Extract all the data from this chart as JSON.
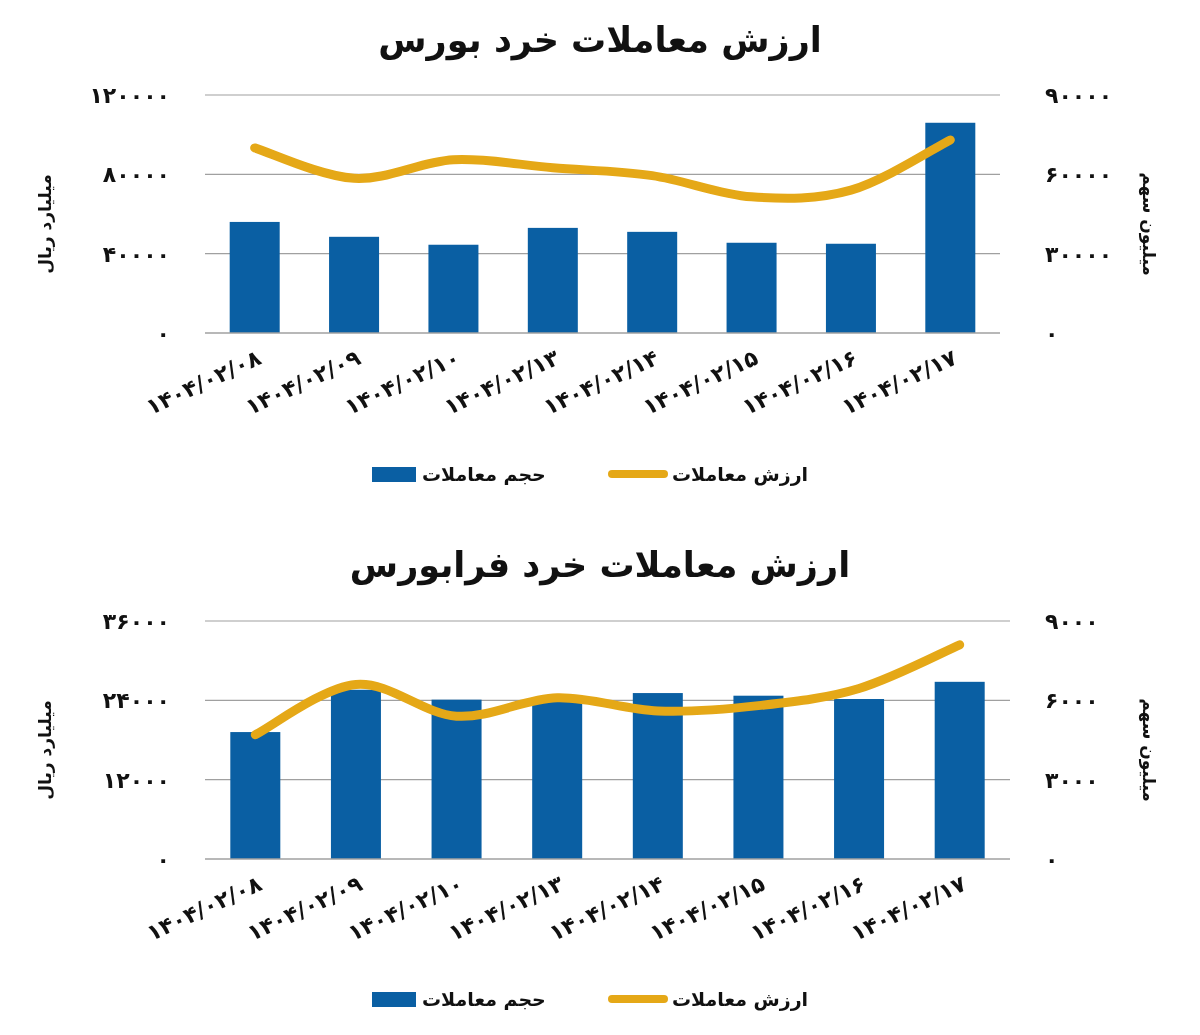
{
  "chart_data": [
    {
      "type": "bar",
      "title": "ارزش معاملات خرد بورس",
      "ylabel": "میلیارد ریال",
      "y2label": "میلیون سهم",
      "categories": [
        "۱۴۰۴/۰۲/۰۸",
        "۱۴۰۴/۰۲/۰۹",
        "۱۴۰۴/۰۲/۱۰",
        "۱۴۰۴/۰۲/۱۳",
        "۱۴۰۴/۰۲/۱۴",
        "۱۴۰۴/۰۲/۱۵",
        "۱۴۰۴/۰۲/۱۶",
        "۱۴۰۴/۰۲/۱۷"
      ],
      "series": [
        {
          "name": "حجم معاملات",
          "color": "#0a5fa3",
          "values": [
            56000,
            48500,
            44500,
            53000,
            51000,
            45500,
            45000,
            106000
          ]
        },
        {
          "name": "ارزش معاملات",
          "type": "line",
          "axis": "y2",
          "color": "#e5a817",
          "values": [
            70000,
            58500,
            65500,
            62500,
            59500,
            51500,
            54000,
            73000
          ]
        }
      ],
      "ylim": [
        0,
        120000
      ],
      "yticks": [
        {
          "value": 0,
          "label": "۰"
        },
        {
          "value": 40000,
          "label": "۴۰۰۰۰"
        },
        {
          "value": 80000,
          "label": "۸۰۰۰۰"
        },
        {
          "value": 120000,
          "label": "۱۲۰۰۰۰"
        }
      ],
      "y2lim": [
        0,
        90000
      ],
      "y2ticks": [
        {
          "value": 0,
          "label": "۰"
        },
        {
          "value": 30000,
          "label": "۳۰۰۰۰"
        },
        {
          "value": 60000,
          "label": "۶۰۰۰۰"
        },
        {
          "value": 90000,
          "label": "۹۰۰۰۰"
        }
      ],
      "grid": "y",
      "legend": "bottom",
      "marker": "none"
    },
    {
      "type": "bar",
      "title": "ارزش معاملات خرد فرابورس",
      "ylabel": "میلیارد ریال",
      "y2label": "میلیون سهم",
      "categories": [
        "۱۴۰۴/۰۲/۰۸",
        "۱۴۰۴/۰۲/۰۹",
        "۱۴۰۴/۰۲/۱۰",
        "۱۴۰۴/۰۲/۱۳",
        "۱۴۰۴/۰۲/۱۴",
        "۱۴۰۴/۰۲/۱۵",
        "۱۴۰۴/۰۲/۱۶",
        "۱۴۰۴/۰۲/۱۷"
      ],
      "series": [
        {
          "name": "حجم معاملات",
          "color": "#0a5fa3",
          "values": [
            19200,
            25600,
            24100,
            23800,
            25100,
            24700,
            24200,
            26800
          ]
        },
        {
          "name": "ارزش معاملات",
          "type": "line",
          "axis": "y2",
          "color": "#e5a817",
          "values": [
            4700,
            6600,
            5400,
            6100,
            5600,
            5800,
            6450,
            8100
          ]
        }
      ],
      "ylim": [
        0,
        36000
      ],
      "yticks": [
        {
          "value": 0,
          "label": "۰"
        },
        {
          "value": 12000,
          "label": "۱۲۰۰۰"
        },
        {
          "value": 24000,
          "label": "۲۴۰۰۰"
        },
        {
          "value": 36000,
          "label": "۳۶۰۰۰"
        }
      ],
      "y2lim": [
        0,
        9000
      ],
      "y2ticks": [
        {
          "value": 0,
          "label": "۰"
        },
        {
          "value": 3000,
          "label": "۳۰۰۰"
        },
        {
          "value": 6000,
          "label": "۶۰۰۰"
        },
        {
          "value": 9000,
          "label": "۹۰۰۰"
        }
      ],
      "grid": "y",
      "legend": "bottom",
      "marker": "none"
    }
  ]
}
